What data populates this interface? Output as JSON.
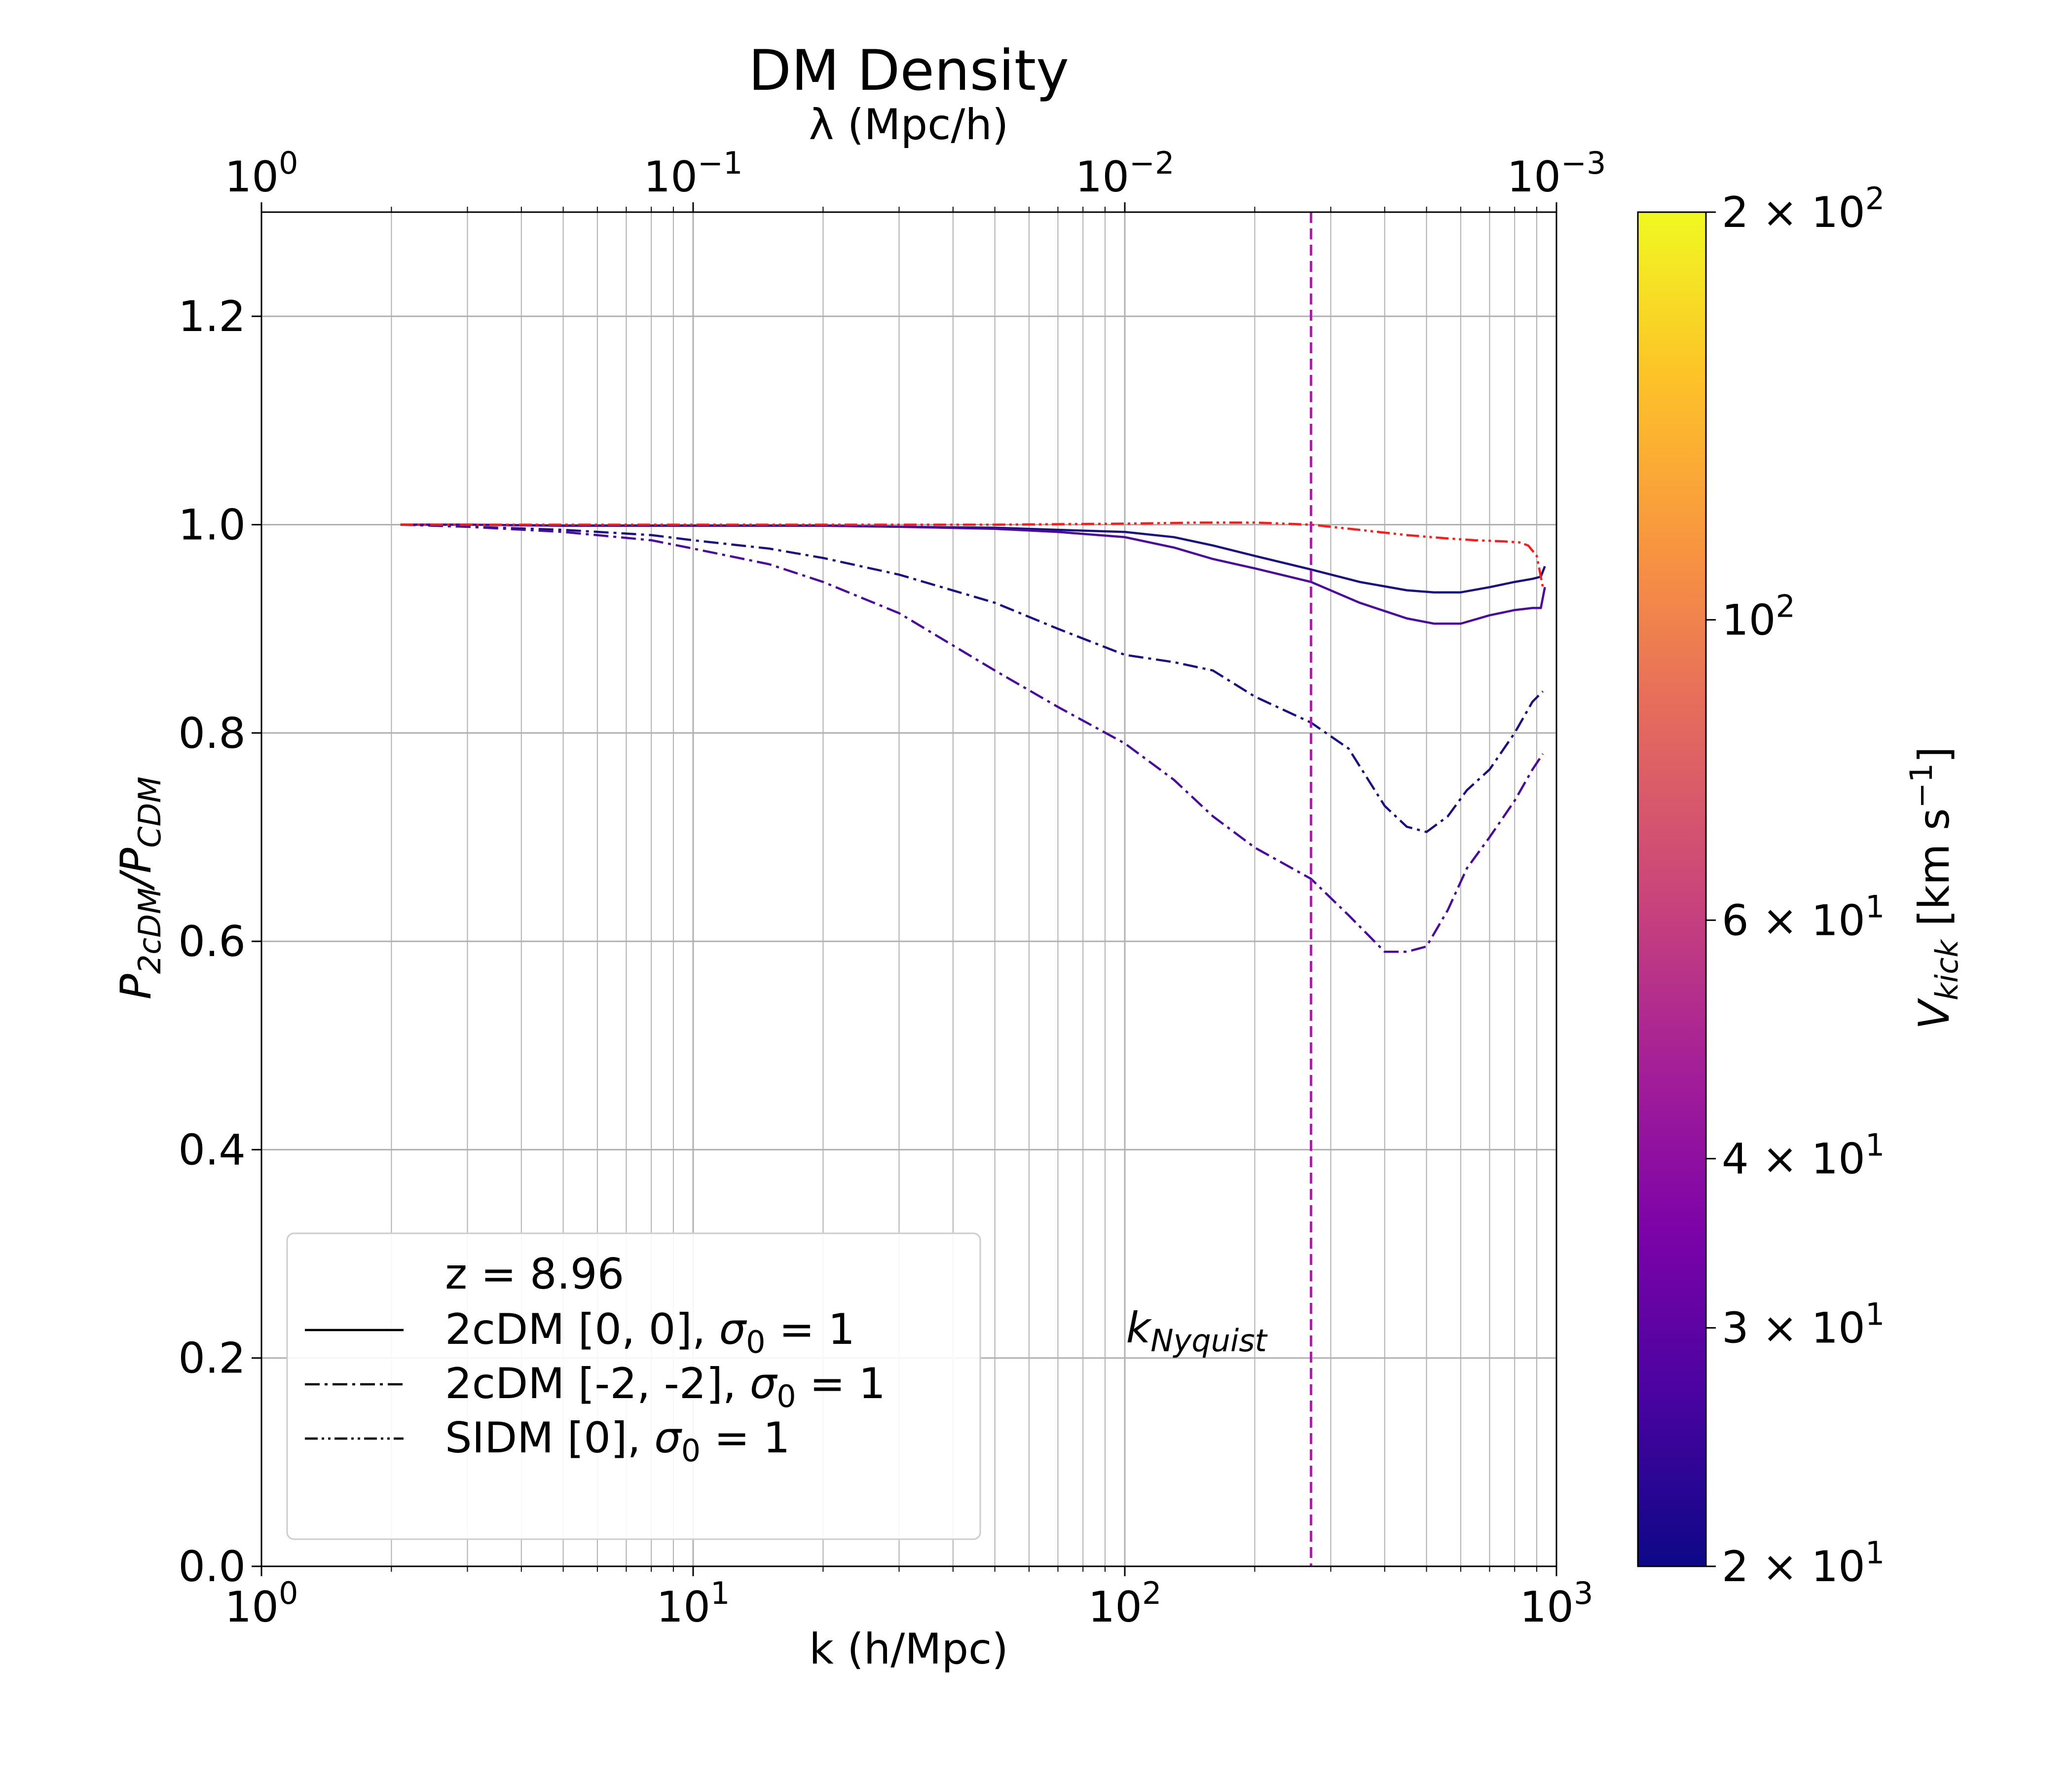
{
  "chart_data": {
    "type": "line",
    "title": "DM Density",
    "xlabel": "k (h/Mpc)",
    "ylabel": "P_2cDM/P_CDM",
    "top_xlabel": "λ (Mpc/h)",
    "xscale": "log",
    "xlim": [
      1,
      1000
    ],
    "ylim": [
      0,
      1.3
    ],
    "grid": true,
    "x_ticks": [
      {
        "value": 1,
        "base": "10",
        "exp": "0"
      },
      {
        "value": 10,
        "base": "10",
        "exp": "1"
      },
      {
        "value": 100,
        "base": "10",
        "exp": "2"
      },
      {
        "value": 1000,
        "base": "10",
        "exp": "3"
      }
    ],
    "top_x_ticks": [
      {
        "value": 1,
        "base": "10",
        "exp": "0"
      },
      {
        "value": 10,
        "base": "10",
        "exp": "−1"
      },
      {
        "value": 100,
        "base": "10",
        "exp": "−2"
      },
      {
        "value": 1000,
        "base": "10",
        "exp": "−3"
      }
    ],
    "y_ticks": [
      "0.0",
      "0.2",
      "0.4",
      "0.6",
      "0.8",
      "1.0",
      "1.2"
    ],
    "vline": {
      "x": 270,
      "color": "#d100d1",
      "style": "dashed",
      "label_main": "k",
      "label_sub": "Nyquist"
    },
    "legend": {
      "placement": "lower-left",
      "header": "z = 8.96",
      "entries": [
        {
          "text_before": "2cDM [0, 0], ",
          "sym": "σ",
          "sub": "0",
          "text_after": " =  1",
          "style": "solid"
        },
        {
          "text_before": "2cDM [-2, -2], ",
          "sym": "σ",
          "sub": "0",
          "text_after": " =  1",
          "style": "dashdot"
        },
        {
          "text_before": "SIDM [0], ",
          "sym": "σ",
          "sub": "0",
          "text_after": " =  1",
          "style": "dashdotdot"
        }
      ]
    },
    "colorbar": {
      "label_main": "V",
      "label_sub": "kick",
      "label_unit": " [km s",
      "label_exp": "−1",
      "label_end": "]",
      "scale": "log",
      "range": [
        20,
        200
      ],
      "colormap": "plasma",
      "ticks": [
        {
          "value": 200,
          "mant": "2 × 10",
          "exp": "2"
        },
        {
          "value": 100,
          "mant": "10",
          "exp": "2"
        },
        {
          "value": 60,
          "mant": "6 × 10",
          "exp": "1"
        },
        {
          "value": 40,
          "mant": "4 × 10",
          "exp": "1"
        },
        {
          "value": 30,
          "mant": "3 × 10",
          "exp": "1"
        },
        {
          "value": 20,
          "mant": "2 × 10",
          "exp": "1"
        }
      ]
    },
    "series": [
      {
        "style": "solid",
        "color": "#1a0f80",
        "x": [
          2.1,
          3,
          5,
          8,
          10,
          15,
          20,
          30,
          50,
          70,
          100,
          130,
          160,
          200,
          270,
          350,
          450,
          520,
          600,
          700,
          800,
          880,
          920,
          940
        ],
        "y": [
          1.0,
          1.0,
          0.999,
          0.999,
          0.999,
          0.999,
          0.999,
          0.998,
          0.997,
          0.995,
          0.993,
          0.988,
          0.98,
          0.97,
          0.957,
          0.945,
          0.937,
          0.935,
          0.935,
          0.94,
          0.945,
          0.948,
          0.95,
          0.96
        ]
      },
      {
        "style": "solid",
        "color": "#4a0a9e",
        "x": [
          2.1,
          3,
          5,
          8,
          10,
          15,
          20,
          30,
          50,
          70,
          100,
          130,
          160,
          200,
          270,
          350,
          450,
          520,
          600,
          700,
          800,
          880,
          920,
          940
        ],
        "y": [
          1.0,
          1.0,
          0.999,
          0.999,
          0.999,
          0.999,
          0.999,
          0.998,
          0.996,
          0.993,
          0.988,
          0.978,
          0.967,
          0.958,
          0.945,
          0.925,
          0.91,
          0.905,
          0.905,
          0.913,
          0.918,
          0.92,
          0.92,
          0.94
        ]
      },
      {
        "style": "dashdot",
        "color": "#1a0f80",
        "x": [
          2.1,
          3,
          5,
          8,
          10,
          15,
          20,
          30,
          50,
          70,
          100,
          130,
          160,
          200,
          270,
          330,
          400,
          450,
          500,
          560,
          620,
          700,
          800,
          880,
          930
        ],
        "y": [
          1.0,
          0.998,
          0.995,
          0.99,
          0.985,
          0.977,
          0.968,
          0.952,
          0.925,
          0.9,
          0.875,
          0.868,
          0.86,
          0.835,
          0.81,
          0.785,
          0.73,
          0.71,
          0.705,
          0.72,
          0.745,
          0.765,
          0.8,
          0.83,
          0.84
        ]
      },
      {
        "style": "dashdot",
        "color": "#4a0a9e",
        "x": [
          2.1,
          3,
          5,
          8,
          10,
          15,
          20,
          30,
          50,
          70,
          100,
          130,
          160,
          200,
          270,
          330,
          400,
          450,
          500,
          560,
          620,
          700,
          800,
          880,
          930
        ],
        "y": [
          1.0,
          0.998,
          0.993,
          0.985,
          0.977,
          0.962,
          0.945,
          0.915,
          0.86,
          0.825,
          0.79,
          0.755,
          0.72,
          0.69,
          0.66,
          0.625,
          0.59,
          0.59,
          0.595,
          0.63,
          0.67,
          0.7,
          0.735,
          0.765,
          0.78
        ]
      },
      {
        "style": "dashdotdot",
        "color": "#ff1a1a",
        "x": [
          2.1,
          5,
          10,
          20,
          50,
          100,
          150,
          200,
          270,
          350,
          450,
          550,
          650,
          750,
          820,
          860,
          900,
          930
        ],
        "y": [
          1.0,
          1.0,
          1.0,
          1.0,
          1.0,
          1.001,
          1.002,
          1.002,
          1.0,
          0.995,
          0.99,
          0.987,
          0.985,
          0.984,
          0.983,
          0.98,
          0.97,
          0.94
        ]
      }
    ]
  }
}
